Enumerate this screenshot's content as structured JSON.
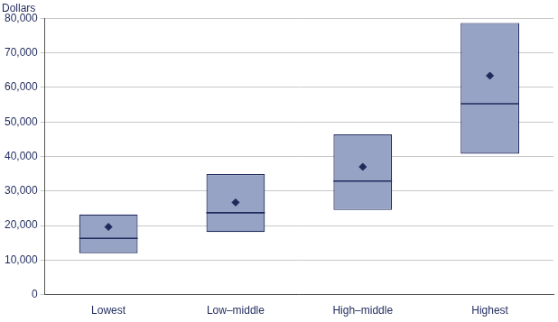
{
  "chart_data": {
    "type": "box",
    "y_label": "Dollars",
    "categories": [
      "Lowest",
      "Low–middle",
      "High–middle",
      "Highest"
    ],
    "box_low": [
      12000,
      18100,
      24500,
      40800
    ],
    "median": [
      16300,
      23700,
      32900,
      55300
    ],
    "box_high": [
      23200,
      34900,
      46400,
      78700
    ],
    "mean": [
      19600,
      26700,
      37000,
      63400
    ],
    "color": "#97a3c5",
    "ylim": [
      0,
      80000
    ],
    "yticks": [
      0,
      {
        "value": 10000,
        "label": "10,000"
      },
      {
        "value": 20000,
        "label": "20,000"
      },
      {
        "value": 30000,
        "label": "30,000"
      },
      {
        "value": 40000,
        "label": "40,000"
      },
      {
        "value": 50000,
        "label": "50,000"
      },
      {
        "value": 60000,
        "label": "60,000"
      },
      {
        "value": 70000,
        "label": "70,000"
      },
      {
        "value": 80000,
        "label": "80,000"
      }
    ],
    "grid": true
  }
}
